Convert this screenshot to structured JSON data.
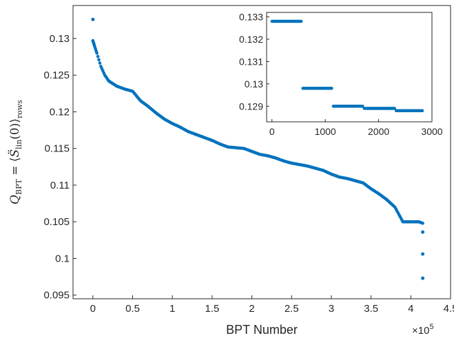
{
  "chart_data": [
    {
      "type": "scatter",
      "title": "",
      "xlabel": "BPT Number",
      "ylabel": "Q_BPT = ⟨S̈_lin(0)⟩_rows",
      "x_multiplier": "×10^5",
      "xlim": [
        -0.25,
        4.5
      ],
      "ylim": [
        0.0945,
        0.1345
      ],
      "x_ticks": [
        "0",
        "0.5",
        "1",
        "1.5",
        "2",
        "2.5",
        "3",
        "3.5",
        "4",
        "4.5"
      ],
      "y_ticks": [
        "0.095",
        "0.1",
        "0.105",
        "0.11",
        "0.115",
        "0.12",
        "0.125",
        "0.13"
      ],
      "marker_color": "#0072BD",
      "curve": [
        [
          0.0,
          0.1297
        ],
        [
          0.02,
          0.129
        ],
        [
          0.05,
          0.128
        ],
        [
          0.1,
          0.1262
        ],
        [
          0.15,
          0.125
        ],
        [
          0.2,
          0.1242
        ],
        [
          0.3,
          0.1235
        ],
        [
          0.4,
          0.1231
        ],
        [
          0.5,
          0.1228
        ],
        [
          0.6,
          0.1215
        ],
        [
          0.7,
          0.1207
        ],
        [
          0.8,
          0.1198
        ],
        [
          0.9,
          0.119
        ],
        [
          1.0,
          0.1184
        ],
        [
          1.1,
          0.1179
        ],
        [
          1.2,
          0.1173
        ],
        [
          1.3,
          0.1169
        ],
        [
          1.4,
          0.1165
        ],
        [
          1.5,
          0.1161
        ],
        [
          1.6,
          0.1156
        ],
        [
          1.7,
          0.1152
        ],
        [
          1.8,
          0.1151
        ],
        [
          1.9,
          0.115
        ],
        [
          2.0,
          0.1146
        ],
        [
          2.1,
          0.1142
        ],
        [
          2.2,
          0.114
        ],
        [
          2.3,
          0.1137
        ],
        [
          2.4,
          0.1133
        ],
        [
          2.5,
          0.113
        ],
        [
          2.6,
          0.1128
        ],
        [
          2.7,
          0.1126
        ],
        [
          2.8,
          0.1123
        ],
        [
          2.9,
          0.112
        ],
        [
          3.0,
          0.1115
        ],
        [
          3.1,
          0.1111
        ],
        [
          3.2,
          0.1109
        ],
        [
          3.3,
          0.1106
        ],
        [
          3.4,
          0.1103
        ],
        [
          3.5,
          0.1095
        ],
        [
          3.6,
          0.1088
        ],
        [
          3.7,
          0.108
        ],
        [
          3.8,
          0.107
        ],
        [
          3.9,
          0.105
        ],
        [
          4.0,
          0.105
        ],
        [
          4.1,
          0.105
        ],
        [
          4.15,
          0.1048
        ]
      ],
      "outliers": [
        [
          0.0,
          0.1326
        ],
        [
          4.15,
          0.1036
        ],
        [
          4.15,
          0.1006
        ],
        [
          4.15,
          0.0973
        ]
      ]
    },
    {
      "type": "scatter",
      "title": "",
      "xlim": [
        -100,
        3000
      ],
      "ylim": [
        0.1283,
        0.1332
      ],
      "x_ticks": [
        "0",
        "1000",
        "2000",
        "3000"
      ],
      "y_ticks": [
        "0.129",
        "0.13",
        "0.131",
        "0.132",
        "0.133"
      ],
      "marker_color": "#0072BD",
      "segments": [
        {
          "x_start": 0,
          "x_end": 550,
          "y": 0.1328
        },
        {
          "x_start": 580,
          "x_end": 1120,
          "y": 0.1298
        },
        {
          "x_start": 1150,
          "x_end": 1700,
          "y": 0.129
        },
        {
          "x_start": 1730,
          "x_end": 2300,
          "y": 0.1289
        },
        {
          "x_start": 2330,
          "x_end": 2820,
          "y": 0.1288
        }
      ]
    }
  ]
}
